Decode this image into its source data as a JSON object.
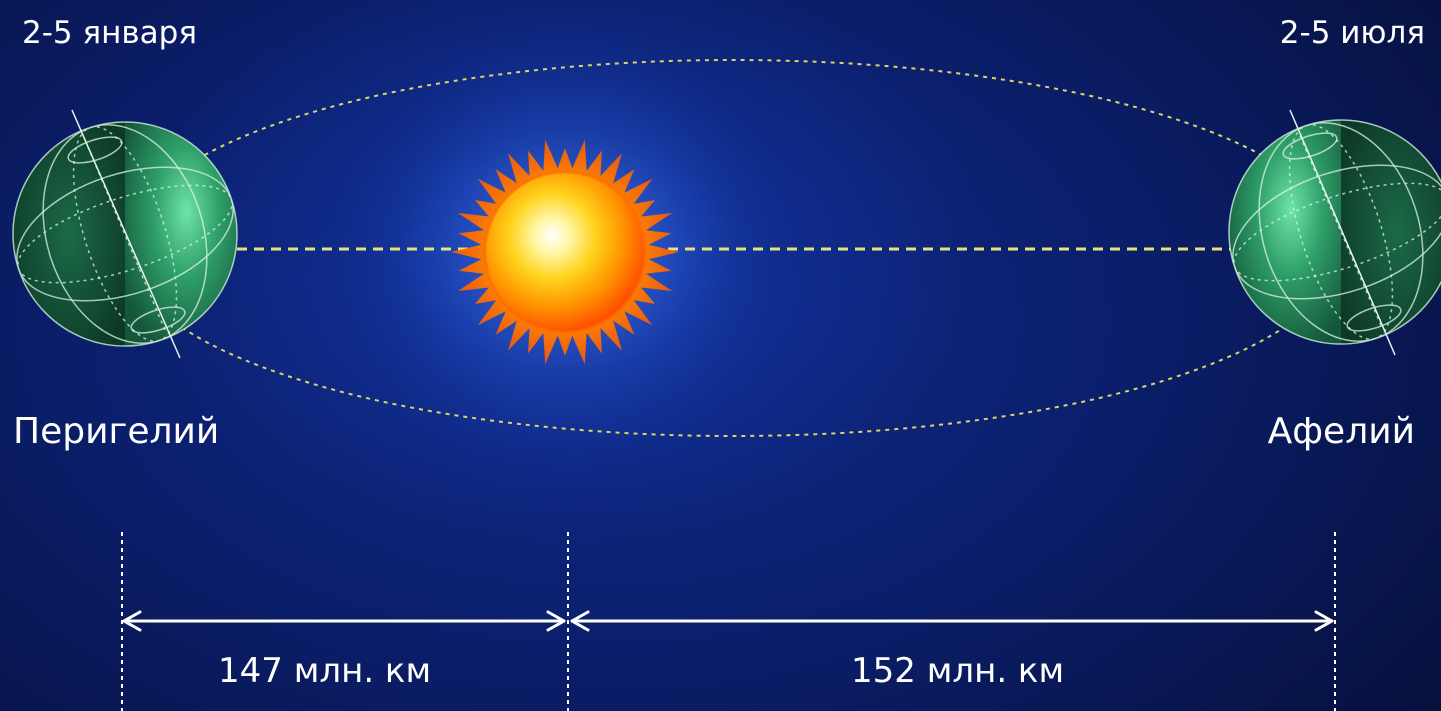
{
  "dates": {
    "left": "2-5 января",
    "right": "2-5 июля"
  },
  "points": {
    "perihelion": "Перигелий",
    "aphelion": "Афелий"
  },
  "distances": {
    "left": "147 млн. км",
    "right": "152 млн. км"
  },
  "colors": {
    "background": "#0b1f6d",
    "orbit_line": "#e8e27a",
    "earth_green": "#2e8a5a",
    "sun_core": "#fff6a0",
    "sun_edge": "#ff5a00",
    "text": "#ffffff"
  }
}
